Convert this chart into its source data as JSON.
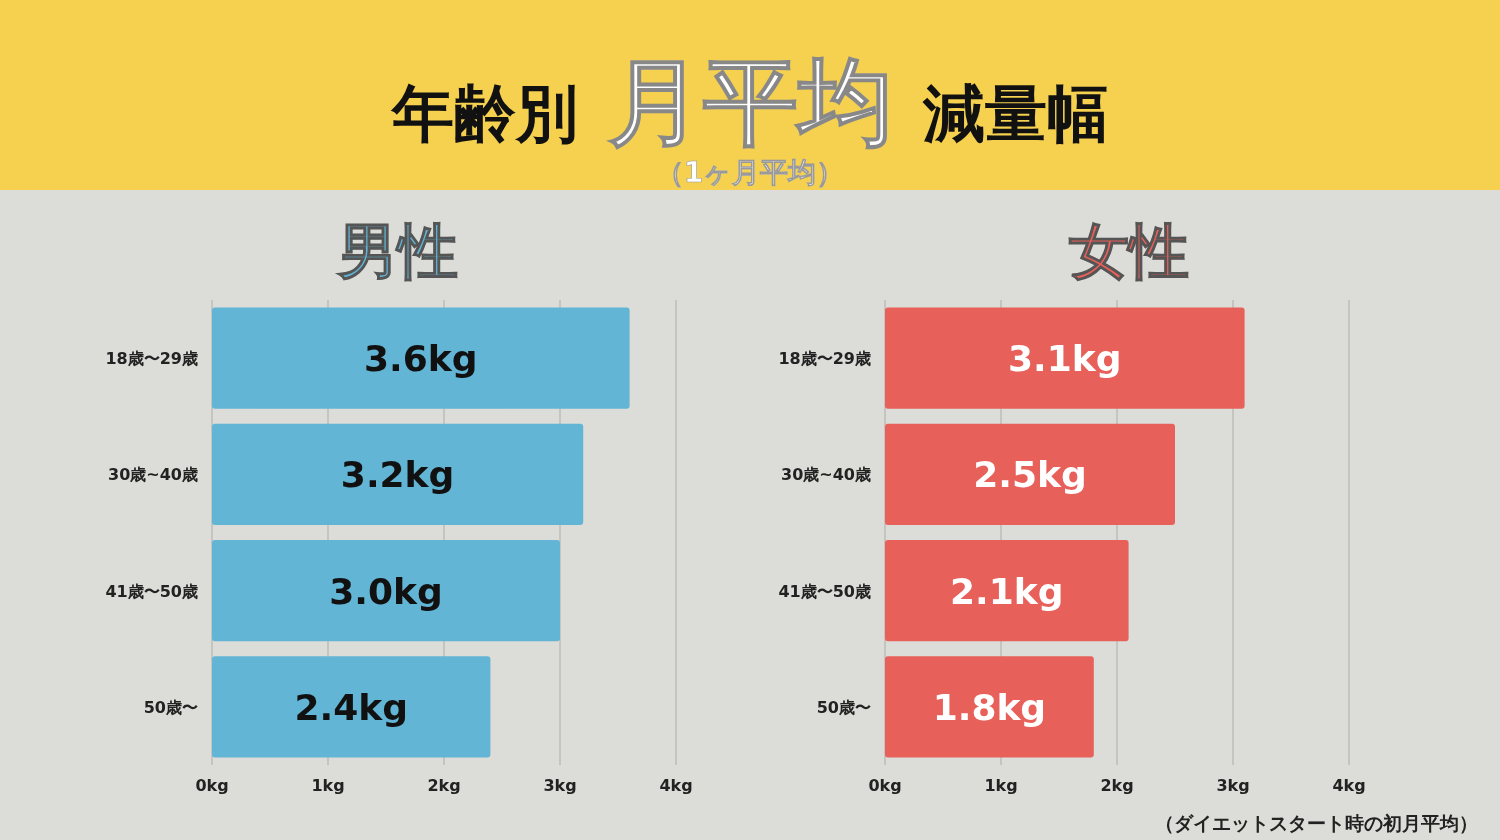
{
  "chart_data": [
    {
      "type": "bar",
      "orientation": "horizontal",
      "title": "年齢別 月平均 減量幅",
      "subtitle": "（1ヶ月平均）",
      "categories": [
        "18歳〜29歳",
        "30歳~40歳",
        "41歳〜50歳",
        "50歳〜"
      ],
      "series": [
        {
          "name": "男性",
          "color": "#62b5d4",
          "values": [
            3.6,
            3.2,
            3.0,
            2.4
          ],
          "value_labels": [
            "3.6kg",
            "3.2kg",
            "3.0kg",
            "2.4kg"
          ]
        }
      ],
      "xlim": [
        0,
        4
      ],
      "xticks": [
        {
          "value": 0,
          "label": "0kg"
        },
        {
          "value": 1,
          "label": "1kg"
        },
        {
          "value": 2,
          "label": "2kg"
        },
        {
          "value": 3,
          "label": "3kg"
        },
        {
          "value": 4,
          "label": "4kg"
        }
      ],
      "grid": "x"
    },
    {
      "type": "bar",
      "orientation": "horizontal",
      "categories": [
        "18歳〜29歳",
        "30歳~40歳",
        "41歳〜50歳",
        "50歳〜"
      ],
      "series": [
        {
          "name": "女性",
          "color": "#e8605a",
          "values": [
            3.1,
            2.5,
            2.1,
            1.8
          ],
          "value_labels": [
            "3.1kg",
            "2.5kg",
            "2.1kg",
            "1.8kg"
          ]
        }
      ],
      "xlim": [
        0,
        4
      ],
      "xticks": [
        {
          "value": 0,
          "label": "0kg"
        },
        {
          "value": 1,
          "label": "1kg"
        },
        {
          "value": 2,
          "label": "2kg"
        },
        {
          "value": 3,
          "label": "3kg"
        },
        {
          "value": 4,
          "label": "4kg"
        }
      ],
      "grid": "x",
      "annotations": [
        "（ダイエットスタート時の初月平均）"
      ]
    }
  ]
}
